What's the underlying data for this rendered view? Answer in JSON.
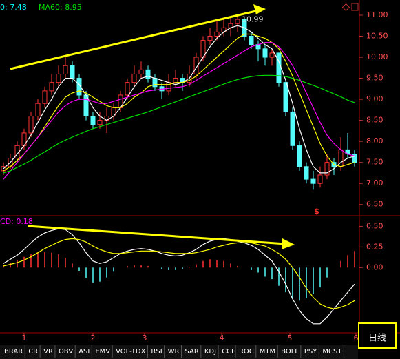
{
  "chart_data": {
    "type": "candlestick",
    "legend": [
      "0: 7.48",
      "MA60: 8.95"
    ],
    "peak": 10.99,
    "macd_legend": "CD: 0.18",
    "candles": [
      [
        7.3,
        7.5,
        7.2,
        7.4
      ],
      [
        7.4,
        7.7,
        7.35,
        7.6
      ],
      [
        7.6,
        8.0,
        7.5,
        7.9
      ],
      [
        7.9,
        8.3,
        7.8,
        8.2
      ],
      [
        8.2,
        8.7,
        8.1,
        8.6
      ],
      [
        8.6,
        9.0,
        8.5,
        8.9
      ],
      [
        8.9,
        9.3,
        8.8,
        9.2
      ],
      [
        9.2,
        9.6,
        9.1,
        9.4
      ],
      [
        9.4,
        9.8,
        9.3,
        9.6
      ],
      [
        9.6,
        10.0,
        9.5,
        9.8
      ],
      [
        9.8,
        9.9,
        9.4,
        9.5
      ],
      [
        9.5,
        9.6,
        9.0,
        9.1
      ],
      [
        9.1,
        9.2,
        8.5,
        8.6
      ],
      [
        8.6,
        8.7,
        8.3,
        8.4
      ],
      [
        8.4,
        8.7,
        8.3,
        8.5
      ],
      [
        8.5,
        8.8,
        8.2,
        8.6
      ],
      [
        8.6,
        8.9,
        8.5,
        8.8
      ],
      [
        8.8,
        9.2,
        8.7,
        9.1
      ],
      [
        9.1,
        9.5,
        9.0,
        9.4
      ],
      [
        9.4,
        9.8,
        9.3,
        9.6
      ],
      [
        9.6,
        9.9,
        9.5,
        9.7
      ],
      [
        9.7,
        9.8,
        9.4,
        9.5
      ],
      [
        9.5,
        9.6,
        9.2,
        9.3
      ],
      [
        9.3,
        9.4,
        9.0,
        9.2
      ],
      [
        9.2,
        9.6,
        9.1,
        9.4
      ],
      [
        9.4,
        9.7,
        9.3,
        9.5
      ],
      [
        9.5,
        9.6,
        9.2,
        9.4
      ],
      [
        9.4,
        9.8,
        9.3,
        9.6
      ],
      [
        9.6,
        10.1,
        9.5,
        10.0
      ],
      [
        10.0,
        10.5,
        9.9,
        10.4
      ],
      [
        10.4,
        10.7,
        10.3,
        10.5
      ],
      [
        10.5,
        10.9,
        10.4,
        10.6
      ],
      [
        10.6,
        10.9,
        10.5,
        10.7
      ],
      [
        10.7,
        10.95,
        10.5,
        10.8
      ],
      [
        10.8,
        10.99,
        10.6,
        10.9
      ],
      [
        10.9,
        10.95,
        10.4,
        10.5
      ],
      [
        10.5,
        10.6,
        10.2,
        10.3
      ],
      [
        10.3,
        10.4,
        9.9,
        10.2
      ],
      [
        10.2,
        10.3,
        9.8,
        10.0
      ],
      [
        10.0,
        10.2,
        9.8,
        10.1
      ],
      [
        10.1,
        10.1,
        9.3,
        9.4
      ],
      [
        9.4,
        9.5,
        8.6,
        8.7
      ],
      [
        8.7,
        8.8,
        7.8,
        7.9
      ],
      [
        7.9,
        8.0,
        7.3,
        7.4
      ],
      [
        7.4,
        7.5,
        7.0,
        7.1
      ],
      [
        7.1,
        7.3,
        6.85,
        7.0
      ],
      [
        7.0,
        7.4,
        6.9,
        7.2
      ],
      [
        7.2,
        7.7,
        7.1,
        7.5
      ],
      [
        7.5,
        7.6,
        7.2,
        7.4
      ],
      [
        7.4,
        8.1,
        7.3,
        7.8
      ],
      [
        7.8,
        8.2,
        7.6,
        7.7
      ],
      [
        7.7,
        7.8,
        7.4,
        7.5
      ]
    ],
    "series": [
      {
        "color": "#ffffff",
        "values": [
          7.35,
          7.5,
          7.7,
          7.9,
          8.15,
          8.45,
          8.75,
          9.0,
          9.3,
          9.5,
          9.5,
          9.35,
          9.1,
          8.8,
          8.6,
          8.5,
          8.6,
          8.8,
          9.05,
          9.3,
          9.5,
          9.55,
          9.5,
          9.45,
          9.4,
          9.35,
          9.4,
          9.5,
          9.75,
          10.0,
          10.25,
          10.45,
          10.6,
          10.7,
          10.75,
          10.7,
          10.6,
          10.45,
          10.3,
          10.2,
          9.9,
          9.45,
          8.9,
          8.3,
          7.8,
          7.4,
          7.25,
          7.25,
          7.35,
          7.5,
          7.6,
          7.65
        ]
      },
      {
        "color": "#ffff00",
        "values": [
          7.3,
          7.4,
          7.55,
          7.7,
          7.9,
          8.1,
          8.35,
          8.6,
          8.85,
          9.05,
          9.15,
          9.2,
          9.15,
          9.05,
          8.95,
          8.85,
          8.8,
          8.8,
          8.9,
          9.05,
          9.15,
          9.3,
          9.35,
          9.35,
          9.35,
          9.4,
          9.4,
          9.45,
          9.55,
          9.7,
          9.85,
          10.0,
          10.15,
          10.3,
          10.45,
          10.55,
          10.55,
          10.5,
          10.45,
          10.35,
          10.2,
          9.9,
          9.55,
          9.15,
          8.75,
          8.35,
          7.95,
          7.65,
          7.45,
          7.4,
          7.45,
          7.5
        ]
      },
      {
        "color": "#ff00ff",
        "values": [
          7.1,
          7.3,
          7.5,
          7.7,
          7.9,
          8.1,
          8.3,
          8.5,
          8.7,
          8.85,
          8.95,
          9.0,
          9.0,
          8.95,
          8.9,
          8.9,
          8.95,
          9.0,
          9.05,
          9.1,
          9.15,
          9.2,
          9.22,
          9.24,
          9.26,
          9.28,
          9.3,
          9.35,
          9.45,
          9.55,
          9.65,
          9.75,
          9.85,
          9.95,
          10.05,
          10.15,
          10.25,
          10.3,
          10.35,
          10.35,
          10.25,
          10.05,
          9.8,
          9.5,
          9.15,
          8.8,
          8.45,
          8.15,
          7.95,
          7.8,
          7.7,
          7.65
        ]
      },
      {
        "color": "#00e000",
        "values": [
          7.25,
          7.3,
          7.38,
          7.46,
          7.55,
          7.65,
          7.75,
          7.85,
          7.95,
          8.03,
          8.1,
          8.17,
          8.24,
          8.3,
          8.35,
          8.4,
          8.45,
          8.5,
          8.55,
          8.6,
          8.65,
          8.7,
          8.76,
          8.82,
          8.88,
          8.94,
          9.0,
          9.06,
          9.12,
          9.18,
          9.24,
          9.3,
          9.36,
          9.42,
          9.47,
          9.51,
          9.54,
          9.56,
          9.57,
          9.57,
          9.56,
          9.54,
          9.5,
          9.45,
          9.39,
          9.33,
          9.27,
          9.2,
          9.13,
          9.06,
          8.98,
          8.92
        ]
      }
    ],
    "up_color": "#ff3232",
    "down_color": "#54fcfc",
    "ylim": [
      6.25,
      11.36
    ],
    "yticks": [
      {
        "value": 11,
        "label": "11.00"
      },
      {
        "value": 10.5,
        "label": "10.50"
      },
      {
        "value": 10,
        "label": "10.00"
      },
      {
        "value": 9.5,
        "label": "9.50"
      },
      {
        "value": 9,
        "label": "9.00"
      },
      {
        "value": 8.5,
        "label": "8.50"
      },
      {
        "value": 8,
        "label": "8.00"
      },
      {
        "value": 7.5,
        "label": "7.50"
      },
      {
        "value": 7,
        "label": "7.00"
      },
      {
        "value": 6.5,
        "label": "6.50"
      }
    ],
    "macd": {
      "hist": [
        0.03,
        0.06,
        0.09,
        0.13,
        0.17,
        0.19,
        0.19,
        0.18,
        0.16,
        0.12,
        0.05,
        -0.04,
        -0.13,
        -0.18,
        -0.17,
        -0.12,
        -0.05,
        0.0,
        0.02,
        0.03,
        0.03,
        0.02,
        0.0,
        -0.02,
        -0.03,
        -0.03,
        -0.02,
        0.01,
        0.04,
        0.08,
        0.1,
        0.09,
        0.08,
        0.05,
        0.02,
        0.0,
        -0.03,
        -0.06,
        -0.11,
        -0.14,
        -0.22,
        -0.3,
        -0.38,
        -0.4,
        -0.37,
        -0.32,
        -0.24,
        -0.12,
        0.0,
        0.08,
        0.15,
        0.2
      ],
      "lines": [
        {
          "color": "#ffffff",
          "values": [
            0.05,
            0.1,
            0.15,
            0.22,
            0.3,
            0.37,
            0.42,
            0.45,
            0.47,
            0.46,
            0.4,
            0.3,
            0.18,
            0.08,
            0.05,
            0.07,
            0.12,
            0.17,
            0.2,
            0.22,
            0.23,
            0.22,
            0.2,
            0.17,
            0.15,
            0.14,
            0.15,
            0.18,
            0.22,
            0.28,
            0.32,
            0.34,
            0.35,
            0.34,
            0.32,
            0.3,
            0.27,
            0.22,
            0.15,
            0.08,
            -0.05,
            -0.2,
            -0.38,
            -0.52,
            -0.62,
            -0.68,
            -0.68,
            -0.6,
            -0.5,
            -0.4,
            -0.3,
            -0.2
          ]
        },
        {
          "color": "#ffff00",
          "values": [
            0.02,
            0.04,
            0.06,
            0.09,
            0.13,
            0.18,
            0.23,
            0.27,
            0.31,
            0.34,
            0.35,
            0.34,
            0.31,
            0.26,
            0.22,
            0.19,
            0.17,
            0.17,
            0.18,
            0.19,
            0.2,
            0.2,
            0.2,
            0.19,
            0.18,
            0.17,
            0.17,
            0.17,
            0.18,
            0.2,
            0.22,
            0.25,
            0.27,
            0.29,
            0.3,
            0.3,
            0.3,
            0.28,
            0.26,
            0.22,
            0.17,
            0.1,
            0.0,
            -0.12,
            -0.25,
            -0.36,
            -0.44,
            -0.48,
            -0.5,
            -0.48,
            -0.45,
            -0.4
          ]
        }
      ],
      "ylim": [
        -0.79,
        0.62
      ],
      "yticks": [
        {
          "value": 0.5,
          "label": "0.50"
        },
        {
          "value": 0.25,
          "label": "0.25"
        },
        {
          "value": 0,
          "label": "0.00"
        }
      ]
    },
    "xticks": [
      {
        "value": 3,
        "label": "1"
      },
      {
        "value": 13,
        "label": "2"
      },
      {
        "value": 20.5,
        "label": "3"
      },
      {
        "value": 31.7,
        "label": "4"
      },
      {
        "value": 41.6,
        "label": "5"
      },
      {
        "value": 51.2,
        "label": "6"
      }
    ],
    "signal": "$",
    "period": "日线",
    "tabs": [
      "BRAR",
      "CR",
      "VR",
      "OBV",
      "ASI",
      "EMV",
      "VOL-TDX",
      "RSI",
      "WR",
      "SAR",
      "KDJ",
      "CCI",
      "ROC",
      "MTM",
      "BOLL",
      "PSY",
      "MCST"
    ]
  }
}
